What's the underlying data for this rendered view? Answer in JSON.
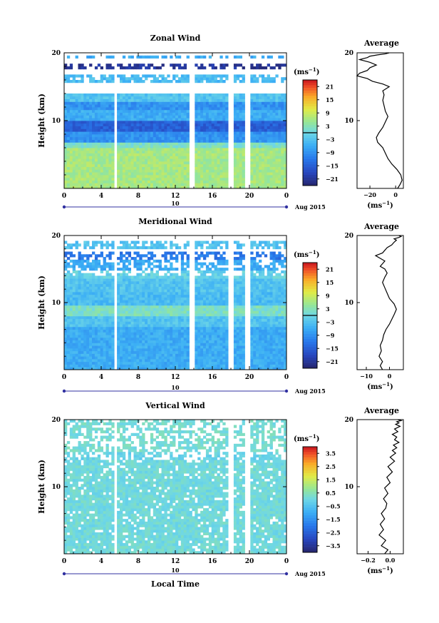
{
  "chart_data": [
    {
      "type": "heatmap",
      "title": "Zonal Wind",
      "ylabel": "Height (km)",
      "unit": "(ms",
      "unit_exp": "−1",
      "xlim": [
        0,
        24
      ],
      "ylim": [
        0,
        20
      ],
      "xticks": [
        "0",
        "4",
        "8",
        "12",
        "16",
        "20",
        "0"
      ],
      "yticks": [
        "10",
        "20"
      ],
      "colorbar_ticks": [
        "21",
        "15",
        "9",
        "3",
        "−3",
        "−9",
        "−15",
        "−21"
      ],
      "colorbar_range": [
        -24,
        24
      ],
      "colorbar_contour": 0,
      "gaps": [
        [
          5.4,
          5.8
        ],
        [
          13.6,
          14.0
        ],
        [
          17.8,
          18.2
        ],
        [
          19.6,
          20.0
        ]
      ],
      "layers": [
        {
          "from": 0.0,
          "to": 6.0,
          "value": 6
        },
        {
          "from": 6.0,
          "to": 6.8,
          "value": 2
        },
        {
          "from": 6.8,
          "to": 8.5,
          "value": -9
        },
        {
          "from": 8.5,
          "to": 10.0,
          "value": -15
        },
        {
          "from": 10.0,
          "to": 11.5,
          "value": -6
        },
        {
          "from": 11.5,
          "to": 13.0,
          "value": -9
        },
        {
          "from": 13.0,
          "to": 14.0,
          "value": -3
        },
        {
          "from": 15.5,
          "to": 16.8,
          "value": -4
        },
        {
          "from": 17.5,
          "to": 18.5,
          "value": -21
        },
        {
          "from": 19.2,
          "to": 19.6,
          "value": -6
        }
      ],
      "profile": {
        "title": "Average",
        "xticks": [
          "−20",
          "0"
        ],
        "xlim": [
          -30,
          6
        ],
        "ylim": [
          0,
          20
        ],
        "yticks": [
          "10",
          "20"
        ],
        "xlabel": "(ms",
        "xlabel_exp": "−1",
        "x": [
          1.5,
          3.5,
          5,
          4,
          1,
          -3,
          -6,
          -8,
          -10,
          -14,
          -15,
          -13,
          -10,
          -8,
          -6,
          -8,
          -9,
          -10,
          -9,
          -10,
          -5,
          -10,
          -18,
          -22,
          -30,
          -28,
          -22,
          -20,
          -15,
          -20,
          -28,
          -22,
          -20,
          -14,
          -8,
          -5
        ],
        "y": [
          0,
          0.6,
          1.2,
          2,
          2.8,
          3.6,
          4.4,
          5.2,
          6,
          6.8,
          7.5,
          8.2,
          9,
          9.8,
          10.6,
          11.4,
          12.2,
          13,
          13.8,
          14.4,
          15,
          15.4,
          15.8,
          16.2,
          16.6,
          17,
          17.4,
          17.8,
          18.2,
          18.6,
          19,
          19.3,
          19.5,
          19.7,
          19.85,
          20
        ]
      }
    },
    {
      "type": "heatmap",
      "title": "Meridional Wind",
      "ylabel": "Height (km)",
      "unit": "(ms",
      "unit_exp": "−1",
      "xlim": [
        0,
        24
      ],
      "ylim": [
        0,
        20
      ],
      "xticks": [
        "0",
        "4",
        "8",
        "12",
        "16",
        "20",
        "0"
      ],
      "yticks": [
        "10",
        "20"
      ],
      "colorbar_ticks": [
        "21",
        "15",
        "9",
        "3",
        "−3",
        "−9",
        "−15",
        "−21"
      ],
      "colorbar_range": [
        -24,
        24
      ],
      "colorbar_contour": 0,
      "gaps": [
        [
          5.4,
          5.8
        ],
        [
          13.6,
          14.0
        ],
        [
          17.8,
          18.2
        ],
        [
          19.6,
          20.0
        ]
      ],
      "layers": [
        {
          "from": 0.0,
          "to": 6.5,
          "value": -6
        },
        {
          "from": 6.5,
          "to": 8.0,
          "value": -3
        },
        {
          "from": 8.0,
          "to": 9.8,
          "value": 2
        },
        {
          "from": 9.8,
          "to": 11.5,
          "value": -4
        },
        {
          "from": 11.5,
          "to": 13.5,
          "value": -3
        },
        {
          "from": 13.5,
          "to": 15.0,
          "value": -1
        },
        {
          "from": 15.0,
          "to": 16.5,
          "value": -6
        },
        {
          "from": 16.5,
          "to": 17.5,
          "value": -12
        },
        {
          "from": 18.0,
          "to": 19.2,
          "value": -3
        }
      ],
      "profile": {
        "title": "Average",
        "xticks": [
          "−10",
          "0"
        ],
        "xlim": [
          -14,
          6
        ],
        "ylim": [
          0,
          20
        ],
        "yticks": [
          "10",
          "20"
        ],
        "xlabel": "(ms",
        "xlabel_exp": "−1",
        "x": [
          -3,
          -4,
          -3,
          -4.5,
          -3.5,
          -4,
          -3,
          -2.5,
          -1.5,
          0,
          1,
          2,
          3,
          2,
          0,
          -1,
          -2,
          -3,
          -2,
          -1,
          -2,
          -4,
          -3,
          -2,
          -4,
          -6,
          -3,
          -2,
          -1,
          1,
          2,
          3,
          2,
          4,
          5,
          4
        ],
        "y": [
          0,
          0.6,
          1.2,
          2,
          2.8,
          3.6,
          4.4,
          5.2,
          6,
          6.8,
          7.5,
          8.2,
          9,
          9.8,
          10.6,
          11.4,
          12.2,
          13,
          13.8,
          14.4,
          15,
          15.4,
          15.8,
          16.2,
          16.6,
          17,
          17.4,
          17.8,
          18.2,
          18.6,
          19,
          19.3,
          19.5,
          19.7,
          19.85,
          20
        ]
      }
    },
    {
      "type": "heatmap",
      "title": "Vertical Wind",
      "ylabel": "Height (km)",
      "xlabel": "Local Time",
      "unit": "(ms",
      "unit_exp": "−1",
      "xlim": [
        0,
        24
      ],
      "ylim": [
        0,
        20
      ],
      "xticks": [
        "0",
        "4",
        "8",
        "12",
        "16",
        "20",
        "0"
      ],
      "yticks": [
        "10",
        "20"
      ],
      "colorbar_ticks": [
        "3.5",
        "2.5",
        "1.5",
        "0.5",
        "−0.5",
        "−1.5",
        "−2.5",
        "−3.5"
      ],
      "colorbar_range": [
        -4,
        4
      ],
      "gaps": [
        [
          5.4,
          5.8
        ],
        [
          17.8,
          18.2
        ],
        [
          19.6,
          20.0
        ]
      ],
      "layers": [
        {
          "from": 0.0,
          "to": 14.0,
          "value": 0.1
        },
        {
          "from": 14.0,
          "to": 15.2,
          "value": -0.1
        },
        {
          "from": 15.2,
          "to": 20.0,
          "value": 0.2
        }
      ],
      "profile": {
        "title": "Average",
        "xticks": [
          "−0.2",
          "0.0"
        ],
        "xlim": [
          -0.3,
          0.12
        ],
        "ylim": [
          0,
          20
        ],
        "yticks": [
          "10",
          "20"
        ],
        "xlabel": "(ms",
        "xlabel_exp": "−1",
        "x": [
          -0.05,
          -0.02,
          -0.08,
          -0.04,
          -0.1,
          -0.06,
          -0.09,
          -0.05,
          -0.08,
          -0.04,
          -0.03,
          -0.06,
          -0.02,
          -0.05,
          0.0,
          -0.03,
          0.02,
          -0.02,
          0.04,
          0.0,
          0.05,
          0.02,
          0.06,
          0.03,
          0.08,
          0.04,
          0.06,
          0.02,
          0.07,
          0.04,
          0.09,
          0.05,
          0.08,
          0.06,
          0.1,
          0.07
        ],
        "y": [
          0,
          0.6,
          1.2,
          2,
          2.8,
          3.6,
          4.4,
          5.2,
          6,
          6.8,
          7.5,
          8.2,
          9,
          9.8,
          10.6,
          11.4,
          12.2,
          13,
          13.8,
          14.4,
          15,
          15.4,
          15.8,
          16.2,
          16.6,
          17,
          17.4,
          17.8,
          18.2,
          18.6,
          19,
          19.3,
          19.5,
          19.7,
          19.85,
          20
        ]
      }
    }
  ],
  "date_bar": {
    "day": "10",
    "month_year": "Aug 2015"
  }
}
